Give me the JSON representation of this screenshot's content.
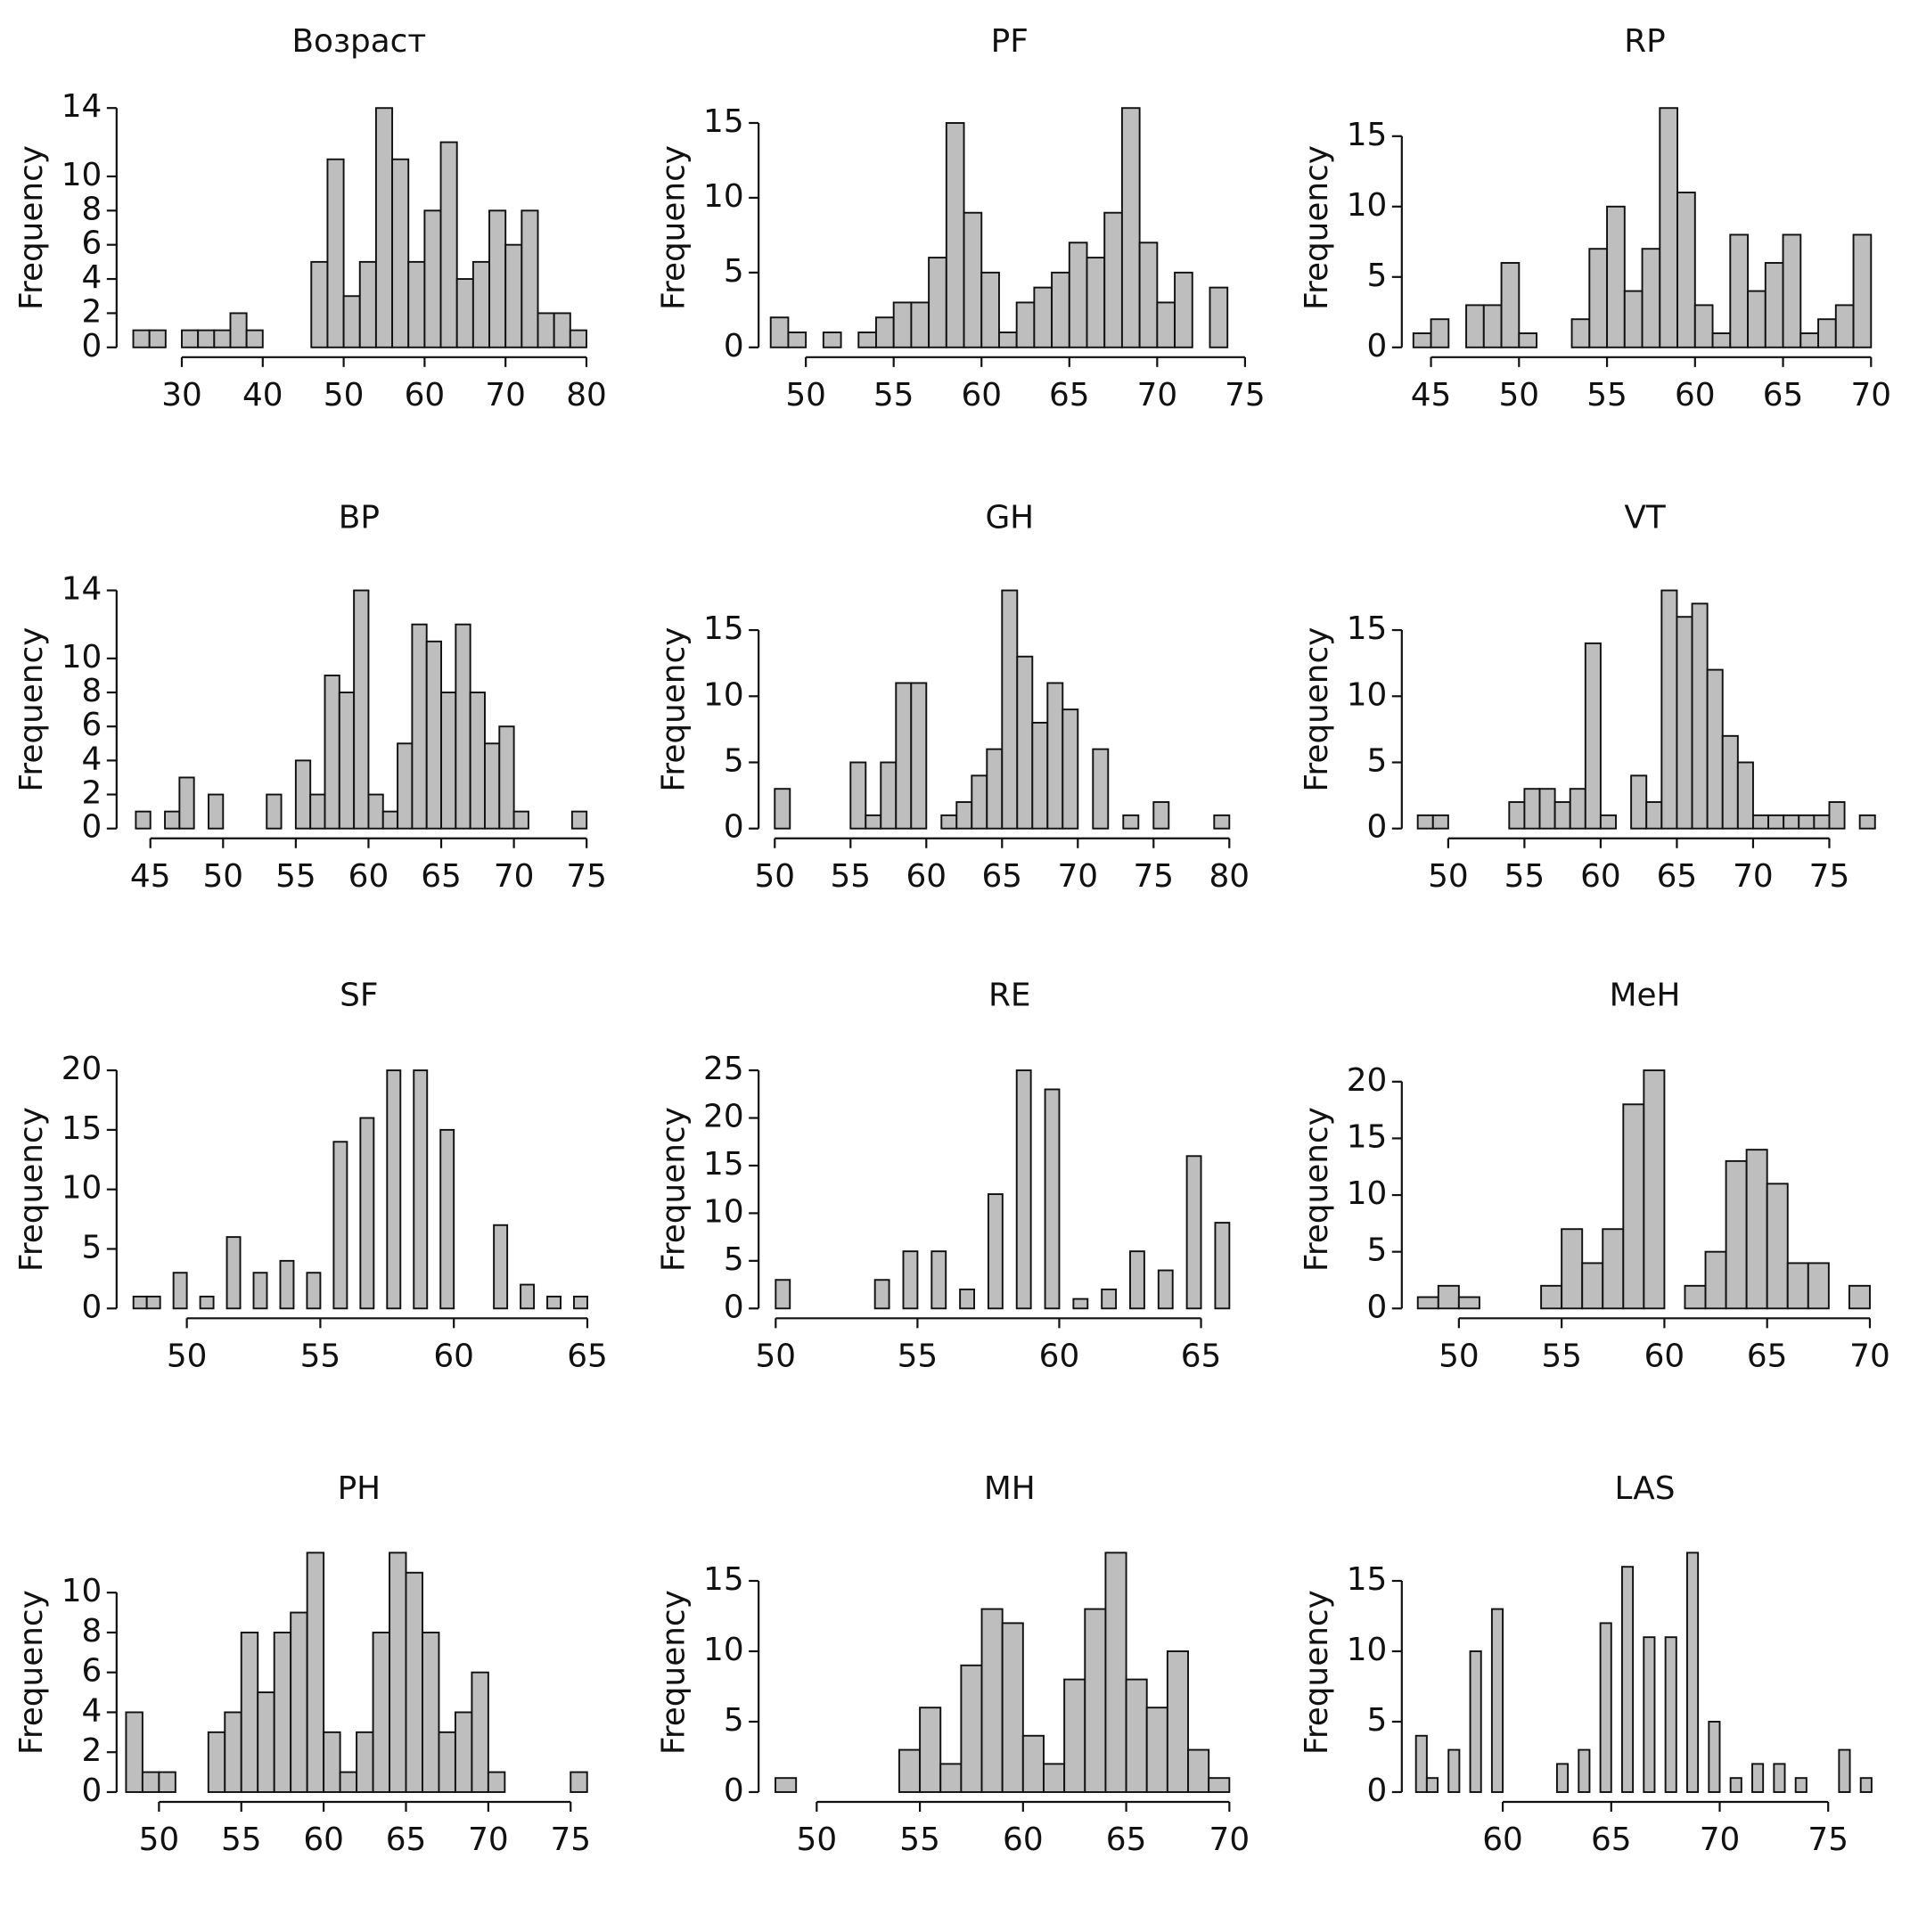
{
  "chart_data": [
    {
      "type": "histogram",
      "title": "Возраст",
      "ylabel": "Frequency",
      "color": "#bebebe",
      "bins": [
        24,
        26,
        28,
        30,
        32,
        34,
        36,
        38,
        40,
        42,
        44,
        46,
        48,
        50,
        52,
        54,
        56,
        58,
        60,
        62,
        64,
        66,
        68,
        70,
        72,
        74,
        76,
        78,
        80
      ],
      "counts": [
        1,
        1,
        0,
        1,
        1,
        1,
        2,
        1,
        0,
        0,
        0,
        5,
        11,
        3,
        5,
        14,
        11,
        5,
        8,
        12,
        4,
        5,
        8,
        6,
        8,
        2,
        2,
        1
      ],
      "xlim": [
        22.7,
        81.1
      ],
      "ylim": [
        0,
        14
      ],
      "xticks": [
        30,
        40,
        50,
        60,
        70,
        80
      ],
      "yticks": [
        0,
        2,
        4,
        6,
        8,
        10,
        14
      ]
    },
    {
      "type": "histogram",
      "title": "PF",
      "ylabel": "Frequency",
      "color": "#bebebe",
      "bins": [
        48,
        49,
        50,
        51,
        52,
        53,
        54,
        55,
        56,
        57,
        58,
        59,
        60,
        61,
        62,
        63,
        64,
        65,
        66,
        67,
        68,
        69,
        70,
        71,
        72,
        73,
        74
      ],
      "counts": [
        2,
        1,
        0,
        1,
        0,
        1,
        2,
        3,
        3,
        6,
        15,
        9,
        5,
        1,
        3,
        4,
        5,
        7,
        6,
        9,
        16,
        7,
        3,
        5,
        0,
        4
      ],
      "xlim": [
        47.8,
        75.4
      ],
      "ylim": [
        0,
        16
      ],
      "xticks": [
        50,
        55,
        60,
        65,
        70,
        75
      ],
      "yticks": [
        0,
        5,
        10,
        15
      ]
    },
    {
      "type": "histogram",
      "title": "RP",
      "ylabel": "Frequency",
      "color": "#bebebe",
      "bins": [
        44,
        45,
        46,
        47,
        48,
        49,
        50,
        51,
        52,
        53,
        54,
        55,
        56,
        57,
        58,
        59,
        60,
        61,
        62,
        63,
        64,
        65,
        66,
        67,
        68,
        69,
        70
      ],
      "counts": [
        1,
        2,
        0,
        3,
        3,
        6,
        1,
        0,
        0,
        2,
        7,
        10,
        4,
        7,
        17,
        11,
        3,
        1,
        8,
        4,
        6,
        8,
        1,
        2,
        3,
        8
      ],
      "xlim": [
        43.9,
        70.4
      ],
      "ylim": [
        0,
        17
      ],
      "xticks": [
        45,
        50,
        55,
        60,
        65,
        70
      ],
      "yticks": [
        0,
        5,
        10,
        15
      ]
    },
    {
      "type": "histogram",
      "title": "BP",
      "ylabel": "Frequency",
      "color": "#bebebe",
      "bins": [
        44,
        45,
        46,
        47,
        48,
        49,
        50,
        51,
        52,
        53,
        54,
        55,
        56,
        57,
        58,
        59,
        60,
        61,
        62,
        63,
        64,
        65,
        66,
        67,
        68,
        69,
        70,
        71,
        72,
        73,
        74,
        75
      ],
      "counts": [
        1,
        0,
        1,
        3,
        0,
        2,
        0,
        0,
        0,
        2,
        0,
        4,
        2,
        9,
        8,
        14,
        2,
        1,
        5,
        12,
        11,
        8,
        12,
        8,
        5,
        6,
        1,
        0,
        0,
        0,
        1
      ],
      "xlim": [
        43.1,
        75.6
      ],
      "ylim": [
        0,
        14
      ],
      "xticks": [
        45,
        50,
        55,
        60,
        65,
        70,
        75
      ],
      "yticks": [
        0,
        2,
        4,
        6,
        8,
        10,
        14
      ]
    },
    {
      "type": "histogram",
      "title": "GH",
      "ylabel": "Frequency",
      "color": "#bebebe",
      "bins": [
        50,
        51,
        52,
        53,
        54,
        55,
        56,
        57,
        58,
        59,
        60,
        61,
        62,
        63,
        64,
        65,
        66,
        67,
        68,
        69,
        70,
        71,
        72,
        73,
        74,
        75,
        76,
        77,
        78,
        79,
        80
      ],
      "counts": [
        3,
        0,
        0,
        0,
        0,
        5,
        1,
        5,
        11,
        11,
        0,
        1,
        2,
        4,
        6,
        18,
        13,
        8,
        11,
        9,
        0,
        6,
        0,
        1,
        0,
        2,
        0,
        0,
        0,
        1
      ],
      "xlim": [
        49.5,
        81.5
      ],
      "ylim": [
        0,
        18
      ],
      "xticks": [
        50,
        55,
        60,
        65,
        70,
        75,
        80
      ],
      "yticks": [
        0,
        5,
        10,
        15
      ]
    },
    {
      "type": "histogram",
      "title": "VT",
      "ylabel": "Frequency",
      "color": "#bebebe",
      "bins": [
        48,
        49,
        50,
        51,
        52,
        53,
        54,
        55,
        56,
        57,
        58,
        59,
        60,
        61,
        62,
        63,
        64,
        65,
        66,
        67,
        68,
        69,
        70,
        71,
        72,
        73,
        74,
        75,
        76,
        77,
        78
      ],
      "counts": [
        1,
        1,
        0,
        0,
        0,
        0,
        2,
        3,
        3,
        2,
        3,
        14,
        1,
        0,
        4,
        2,
        18,
        16,
        17,
        12,
        7,
        5,
        1,
        1,
        1,
        1,
        1,
        2,
        0,
        1
      ],
      "xlim": [
        47.6,
        78.2
      ],
      "ylim": [
        0,
        18
      ],
      "xticks": [
        50,
        55,
        60,
        65,
        70,
        75
      ],
      "yticks": [
        0,
        5,
        10,
        15
      ]
    },
    {
      "type": "histogram",
      "title": "SF",
      "ylabel": "Frequency",
      "color": "#bebebe",
      "bins": [
        48,
        48.5,
        49,
        49.5,
        50,
        50.5,
        51,
        51.5,
        52,
        52.5,
        53,
        53.5,
        54,
        54.5,
        55,
        55.5,
        56,
        56.5,
        57,
        57.5,
        58,
        58.5,
        59,
        59.5,
        60,
        60.5,
        61,
        61.5,
        62,
        62.5,
        63,
        63.5,
        64,
        64.5,
        65
      ],
      "counts": [
        1,
        1,
        0,
        3,
        0,
        1,
        0,
        6,
        0,
        3,
        0,
        4,
        0,
        3,
        0,
        14,
        0,
        16,
        0,
        20,
        0,
        20,
        0,
        15,
        0,
        0,
        0,
        7,
        0,
        2,
        0,
        1,
        0,
        1
      ],
      "xlim": [
        47.6,
        65.3
      ],
      "ylim": [
        0,
        20
      ],
      "xticks": [
        50,
        55,
        60,
        65
      ],
      "yticks": [
        0,
        5,
        10,
        15,
        20
      ]
    },
    {
      "type": "histogram",
      "title": "RE",
      "ylabel": "Frequency",
      "color": "#bebebe",
      "bins": [
        50,
        50.5,
        51,
        51.5,
        52,
        52.5,
        53,
        53.5,
        54,
        54.5,
        55,
        55.5,
        56,
        56.5,
        57,
        57.5,
        58,
        58.5,
        59,
        59.5,
        60,
        60.5,
        61,
        61.5,
        62,
        62.5,
        63,
        63.5,
        64,
        64.5,
        65,
        65.5,
        66
      ],
      "counts": [
        3,
        0,
        0,
        0,
        0,
        0,
        0,
        3,
        0,
        6,
        0,
        6,
        0,
        2,
        0,
        12,
        0,
        25,
        0,
        23,
        0,
        1,
        0,
        2,
        0,
        6,
        0,
        4,
        0,
        16,
        0,
        9
      ],
      "xlim": [
        49.7,
        66.8
      ],
      "ylim": [
        0,
        25
      ],
      "xticks": [
        50,
        55,
        60,
        65
      ],
      "yticks": [
        0,
        5,
        10,
        15,
        20,
        25
      ]
    },
    {
      "type": "histogram",
      "title": "MeH",
      "ylabel": "Frequency",
      "color": "#bebebe",
      "bins": [
        48,
        49,
        50,
        51,
        52,
        53,
        54,
        55,
        56,
        57,
        58,
        59,
        60,
        61,
        62,
        63,
        64,
        65,
        66,
        67,
        68,
        69,
        70
      ],
      "counts": [
        1,
        2,
        1,
        0,
        0,
        0,
        2,
        7,
        4,
        7,
        18,
        21,
        0,
        2,
        5,
        13,
        14,
        11,
        4,
        4,
        0,
        2
      ],
      "xlim": [
        47.7,
        70.4
      ],
      "ylim": [
        0,
        21
      ],
      "xticks": [
        50,
        55,
        60,
        65,
        70
      ],
      "yticks": [
        0,
        5,
        10,
        15,
        20
      ]
    },
    {
      "type": "histogram",
      "title": "PH",
      "ylabel": "Frequency",
      "color": "#bebebe",
      "bins": [
        48,
        49,
        50,
        51,
        52,
        53,
        54,
        55,
        56,
        57,
        58,
        59,
        60,
        61,
        62,
        63,
        64,
        65,
        66,
        67,
        68,
        69,
        70,
        71,
        72,
        73,
        74,
        75,
        76
      ],
      "counts": [
        4,
        1,
        1,
        0,
        0,
        3,
        4,
        8,
        5,
        8,
        9,
        12,
        3,
        1,
        3,
        8,
        12,
        11,
        8,
        3,
        4,
        6,
        1,
        0,
        0,
        0,
        0,
        1
      ],
      "xlim": [
        47.8,
        76.5
      ],
      "ylim": [
        0,
        12
      ],
      "xticks": [
        50,
        55,
        60,
        65,
        70,
        75
      ],
      "yticks": [
        0,
        2,
        4,
        6,
        8,
        10
      ]
    },
    {
      "type": "histogram",
      "title": "MH",
      "ylabel": "Frequency",
      "color": "#bebebe",
      "bins": [
        48,
        49,
        50,
        51,
        52,
        53,
        54,
        55,
        56,
        57,
        58,
        59,
        60,
        61,
        62,
        63,
        64,
        65,
        66,
        67,
        68,
        69,
        70
      ],
      "counts": [
        1,
        0,
        0,
        0,
        0,
        0,
        3,
        6,
        2,
        9,
        13,
        12,
        4,
        2,
        8,
        13,
        17,
        8,
        6,
        10,
        3,
        1
      ],
      "xlim": [
        47.6,
        71.1
      ],
      "ylim": [
        0,
        17
      ],
      "xticks": [
        50,
        55,
        60,
        65,
        70
      ],
      "yticks": [
        0,
        5,
        10,
        15
      ]
    },
    {
      "type": "histogram",
      "title": "LAS",
      "ylabel": "Frequency",
      "color": "#bebebe",
      "bins": [
        56,
        56.5,
        57,
        57.5,
        58,
        58.5,
        59,
        59.5,
        60,
        60.5,
        61,
        61.5,
        62,
        62.5,
        63,
        63.5,
        64,
        64.5,
        65,
        65.5,
        66,
        66.5,
        67,
        67.5,
        68,
        68.5,
        69,
        69.5,
        70,
        70.5,
        71,
        71.5,
        72,
        72.5,
        73,
        73.5,
        74,
        74.5,
        75,
        75.5,
        76,
        76.5,
        77
      ],
      "counts": [
        4,
        1,
        0,
        3,
        0,
        10,
        0,
        13,
        0,
        0,
        0,
        0,
        0,
        2,
        0,
        3,
        0,
        12,
        0,
        16,
        0,
        11,
        0,
        11,
        0,
        17,
        0,
        5,
        0,
        1,
        0,
        2,
        0,
        2,
        0,
        1,
        0,
        0,
        0,
        3,
        0,
        1
      ],
      "xlim": [
        55.8,
        77.3
      ],
      "ylim": [
        0,
        17
      ],
      "xticks": [
        60,
        65,
        70,
        75
      ],
      "yticks": [
        0,
        5,
        10,
        15
      ]
    }
  ]
}
